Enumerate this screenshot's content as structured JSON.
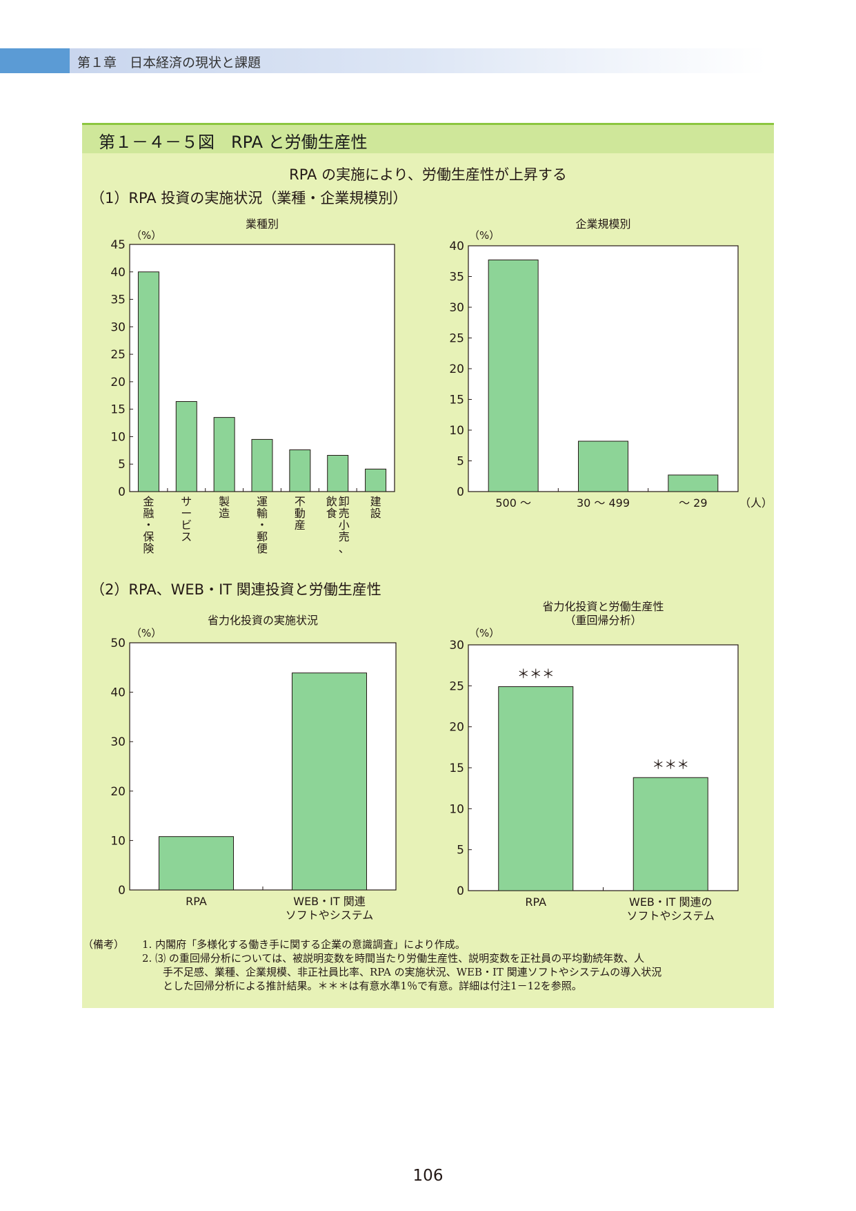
{
  "header": {
    "chapter_title": "第１章　日本経済の現状と課題"
  },
  "figure": {
    "title": "第１－４－５図　RPA と労働生産性",
    "subtitle": "RPA の実施により、労働生産性が上昇する",
    "section1_title": "（1）RPA 投資の実施状況（業種・企業規模別）",
    "section2_title": "（2）RPA、WEB・IT 関連投資と労働生産性"
  },
  "colors": {
    "bar_fill": "#8dd497",
    "bar_stroke": "#231815",
    "panel_bg": "#e7f2b7",
    "title_bar": "#cfe79a",
    "title_rule": "#8cc63f",
    "header_accent": "#5b9bd5"
  },
  "chart_data": [
    {
      "id": "industry",
      "type": "bar",
      "title": "業種別",
      "ylabel": "（%）",
      "ylim": [
        0,
        45
      ],
      "yticks": [
        "0",
        "5",
        "10",
        "15",
        "20",
        "25",
        "30",
        "35",
        "40",
        "45"
      ],
      "categories": [
        "金融・保険",
        "サービス",
        "製造",
        "運輸・郵便",
        "不動産",
        "卸売、小売、飲食",
        "建設"
      ],
      "category_label_columns": [
        [
          "金融・保険"
        ],
        [
          "サービス"
        ],
        [
          "製造"
        ],
        [
          "運輸・郵便"
        ],
        [
          "不動産"
        ],
        [
          "卸売小売、",
          "飲食"
        ],
        [
          "建設"
        ]
      ],
      "values": [
        40.0,
        16.4,
        13.5,
        9.5,
        7.6,
        6.6,
        4.1
      ],
      "annotations": [],
      "grid": false
    },
    {
      "id": "size",
      "type": "bar",
      "title": "企業規模別",
      "ylabel": "（%）",
      "ylim": [
        0,
        40
      ],
      "yticks": [
        "0",
        "5",
        "10",
        "15",
        "20",
        "25",
        "30",
        "35",
        "40"
      ],
      "categories": [
        "500 ～",
        "30 ～ 499",
        "～ 29"
      ],
      "x_unit": "（人）",
      "values": [
        37.7,
        8.2,
        2.7
      ],
      "annotations": [],
      "grid": false
    },
    {
      "id": "saving",
      "type": "bar",
      "title": "省力化投資の実施状況",
      "ylabel": "（%）",
      "ylim": [
        0,
        50
      ],
      "yticks": [
        "0",
        "10",
        "20",
        "30",
        "40",
        "50"
      ],
      "categories": [
        "RPA",
        "WEB・IT 関連ソフトやシステム"
      ],
      "category_label_lines": [
        [
          "RPA"
        ],
        [
          "WEB・IT 関連",
          "ソフトやシステム"
        ]
      ],
      "values": [
        10.8,
        43.9
      ],
      "annotations": [],
      "grid": false
    },
    {
      "id": "regression",
      "type": "bar",
      "title": "省力化投資と労働生産性（重回帰分析）",
      "title_lines": [
        "省力化投資と労働生産性",
        "（重回帰分析）"
      ],
      "ylabel": "（%）",
      "ylim": [
        0,
        30
      ],
      "yticks": [
        "0",
        "5",
        "10",
        "15",
        "20",
        "25",
        "30"
      ],
      "categories": [
        "RPA",
        "WEB・IT 関連のソフトやシステム"
      ],
      "category_label_lines": [
        [
          "RPA"
        ],
        [
          "WEB・IT 関連の",
          "ソフトやシステム"
        ]
      ],
      "values": [
        24.9,
        13.8
      ],
      "annotations": [
        "＊＊＊",
        "＊＊＊"
      ],
      "grid": false
    }
  ],
  "notes": {
    "label": "（備考）",
    "item1": "1.  内閣府「多様化する働き手に関する企業の意識調査」により作成。",
    "item2_line1": "2.  ⑶ の重回帰分析については、被説明変数を時間当たり労働生産性、説明変数を正社員の平均勤続年数、人",
    "item2_line2": "手不足感、業種、企業規模、非正社員比率、RPA の実施状況、WEB・IT 関連ソフトやシステムの導入状況",
    "item2_line3": "とした回帰分析による推計結果。＊＊＊は有意水準1％で有意。詳細は付注1－12を参照。"
  },
  "page_number": "106"
}
